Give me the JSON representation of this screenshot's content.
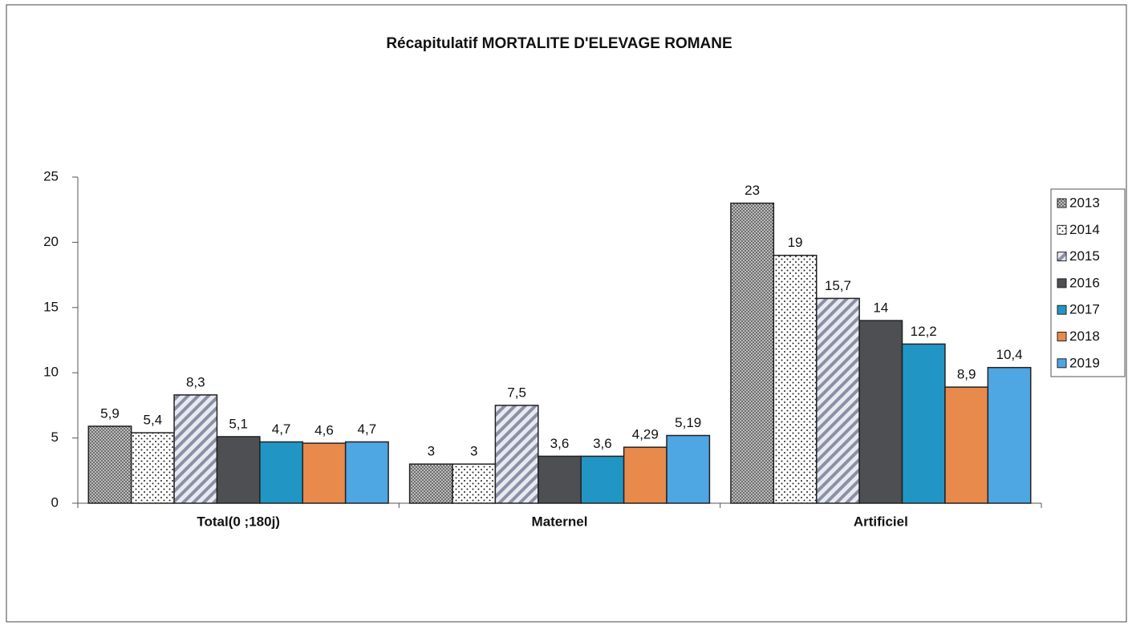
{
  "chart_data": {
    "type": "bar",
    "title": "Récapitulatif MORTALITE D'ELEVAGE ROMANE",
    "categories": [
      "Total(0 ;180j)",
      "Maternel",
      "Artificiel"
    ],
    "series": [
      {
        "name": "2013",
        "color": "#9a9a9a",
        "pattern": "dense-dots",
        "values": [
          5.9,
          3,
          23
        ],
        "value_labels": [
          "5,9",
          "3",
          "23"
        ]
      },
      {
        "name": "2014",
        "color": "#ffffff",
        "pattern": "sparse-dots",
        "values": [
          5.4,
          3,
          19
        ],
        "value_labels": [
          "5,4",
          "3",
          "19"
        ]
      },
      {
        "name": "2015",
        "color": "#c8ccd8",
        "pattern": "diagonal",
        "values": [
          8.3,
          7.5,
          15.7
        ],
        "value_labels": [
          "8,3",
          "7,5",
          "15,7"
        ]
      },
      {
        "name": "2016",
        "color": "#4d4f52",
        "values": [
          5.1,
          3.6,
          14
        ],
        "value_labels": [
          "5,1",
          "3,6",
          "14"
        ]
      },
      {
        "name": "2017",
        "color": "#2196c4",
        "values": [
          4.7,
          3.6,
          12.2
        ],
        "value_labels": [
          "4,7",
          "3,6",
          "12,2"
        ]
      },
      {
        "name": "2018",
        "color": "#e88a4c",
        "values": [
          4.6,
          4.29,
          8.9
        ],
        "value_labels": [
          "4,6",
          "4,29",
          "8,9"
        ]
      },
      {
        "name": "2019",
        "color": "#4ea6e2",
        "values": [
          4.7,
          5.19,
          10.4
        ],
        "value_labels": [
          "4,7",
          "5,19",
          "10,4"
        ]
      }
    ],
    "ylim": [
      0,
      25
    ],
    "yticks": [
      0,
      5,
      10,
      15,
      20,
      25
    ],
    "legend": "right",
    "grid": false
  }
}
